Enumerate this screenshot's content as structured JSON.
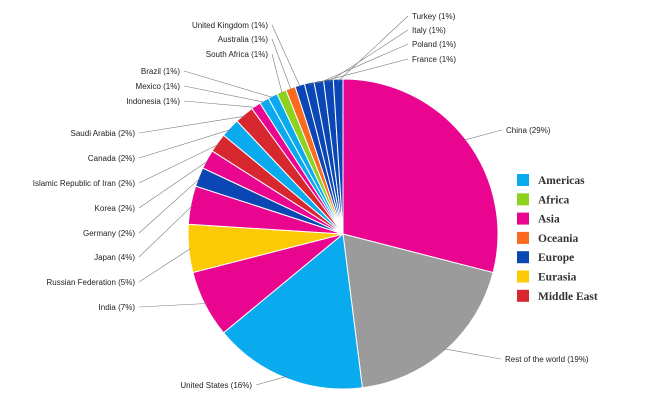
{
  "colors": {
    "Americas": "#0aaaee",
    "Africa": "#8cd21e",
    "Asia": "#ea0590",
    "Oceania": "#fb6a1e",
    "Europe": "#0a46b4",
    "Eurasia": "#fdcb05",
    "Middle East": "#d72830",
    "Other": "#9b9b9b"
  },
  "chart_data": {
    "type": "pie",
    "title": "",
    "start": "12 o'clock",
    "direction": "clockwise",
    "slices": [
      {
        "label": "China (29%)",
        "value": 29,
        "region": "Asia"
      },
      {
        "label": "Rest of the world (19%)",
        "value": 19,
        "region": "Other"
      },
      {
        "label": "United States (16%)",
        "value": 16,
        "region": "Americas"
      },
      {
        "label": "India (7%)",
        "value": 7,
        "region": "Asia"
      },
      {
        "label": "Russian Federation (5%)",
        "value": 5,
        "region": "Eurasia"
      },
      {
        "label": "Japan (4%)",
        "value": 4,
        "region": "Asia"
      },
      {
        "label": "Germany (2%)",
        "value": 2,
        "region": "Europe"
      },
      {
        "label": "Korea (2%)",
        "value": 2,
        "region": "Asia"
      },
      {
        "label": "Islamic Republic of Iran (2%)",
        "value": 2,
        "region": "Middle East"
      },
      {
        "label": "Canada (2%)",
        "value": 2,
        "region": "Americas"
      },
      {
        "label": "Saudi Arabia (2%)",
        "value": 2,
        "region": "Middle East"
      },
      {
        "label": "Indonesia (1%)",
        "value": 1,
        "region": "Asia"
      },
      {
        "label": "Mexico (1%)",
        "value": 1,
        "region": "Americas"
      },
      {
        "label": "Brazil (1%)",
        "value": 1,
        "region": "Americas"
      },
      {
        "label": "South Africa (1%)",
        "value": 1,
        "region": "Africa"
      },
      {
        "label": "Australia (1%)",
        "value": 1,
        "region": "Oceania"
      },
      {
        "label": "United Kingdom (1%)",
        "value": 1,
        "region": "Europe"
      },
      {
        "label": "France (1%)",
        "value": 1,
        "region": "Europe"
      },
      {
        "label": "Poland (1%)",
        "value": 1,
        "region": "Europe"
      },
      {
        "label": "Italy (1%)",
        "value": 1,
        "region": "Europe"
      },
      {
        "label": "Turkey (1%)",
        "value": 1,
        "region": "Europe"
      }
    ],
    "legend": {
      "placement": "right",
      "entries": [
        "Americas",
        "Africa",
        "Asia",
        "Oceania",
        "Europe",
        "Eurasia",
        "Middle East"
      ]
    }
  }
}
